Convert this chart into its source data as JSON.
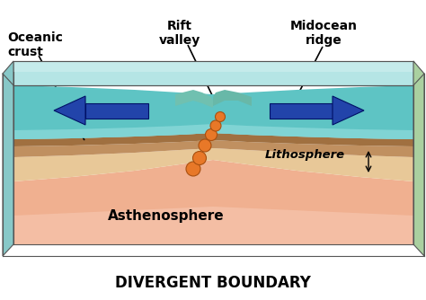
{
  "title": "DIVERGENT BOUNDARY",
  "title_fontsize": 12,
  "title_fontweight": "bold",
  "title_color": "#000000",
  "labels": {
    "oceanic_crust": "Oceanic\ncrust",
    "rift_valley": "Rift\nvalley",
    "midocean_ridge": "Midocean\nridge",
    "lithosphere": "Lithosphere",
    "asthenosphere": "Asthenosphere"
  },
  "label_fontsize": 10,
  "label_fontweight": "bold",
  "colors": {
    "water_face": "#5cc8c8",
    "water_top": "#9de0e0",
    "water_side": "#3aafaf",
    "water_light_top": "#c5eaea",
    "crust_brown": "#b8884e",
    "crust_dark": "#8a6030",
    "crust_light": "#d4aa70",
    "lithosphere_tan": "#e8cca0",
    "lithosphere_light": "#f0ddc0",
    "asthenosphere_pink": "#f0a888",
    "asthenosphere_mid": "#f5bea8",
    "asthenosphere_light": "#fad8cc",
    "background": "#ffffff",
    "hotspot_orange": "#e87828",
    "arrow_blue": "#2244aa",
    "outline": "#555555",
    "black": "#000000"
  }
}
